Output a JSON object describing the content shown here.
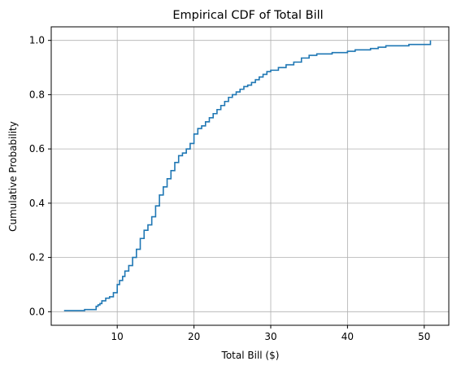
{
  "chart_data": {
    "type": "line",
    "step": true,
    "title": "Empirical CDF of Total Bill",
    "xlabel": "Total Bill ($)",
    "ylabel": "Cumulative Probability",
    "xlim": [
      1.4,
      53.2
    ],
    "ylim": [
      -0.05,
      1.05
    ],
    "xticks": [
      10,
      20,
      30,
      40,
      50
    ],
    "xtick_labels": [
      "10",
      "20",
      "30",
      "40",
      "50"
    ],
    "yticks": [
      0.0,
      0.2,
      0.4,
      0.6,
      0.8,
      1.0
    ],
    "ytick_labels": [
      "0.0",
      "0.2",
      "0.4",
      "0.6",
      "0.8",
      "1.0"
    ],
    "grid": true,
    "line_color": "#1f77b4",
    "series": [
      {
        "x": [
          3.07,
          5.75,
          7.25,
          7.5,
          7.75,
          8.0,
          8.5,
          9.0,
          9.5,
          10.0,
          10.3,
          10.7,
          11.0,
          11.5,
          12.0,
          12.5,
          13.0,
          13.5,
          14.0,
          14.5,
          15.0,
          15.5,
          16.0,
          16.5,
          17.0,
          17.5,
          18.0,
          18.5,
          19.0,
          19.5,
          20.0,
          20.5,
          21.0,
          21.5,
          22.0,
          22.5,
          23.0,
          23.5,
          24.0,
          24.5,
          25.0,
          25.5,
          26.0,
          26.5,
          27.0,
          27.5,
          28.0,
          28.5,
          29.0,
          29.5,
          30.0,
          31.0,
          32.0,
          33.0,
          34.0,
          35.0,
          36.0,
          38.0,
          40.0,
          41.0,
          43.0,
          44.0,
          45.0,
          48.0,
          50.81
        ],
        "y": [
          0.004,
          0.008,
          0.02,
          0.025,
          0.03,
          0.04,
          0.05,
          0.055,
          0.07,
          0.1,
          0.115,
          0.13,
          0.15,
          0.17,
          0.2,
          0.23,
          0.27,
          0.3,
          0.32,
          0.35,
          0.39,
          0.43,
          0.46,
          0.49,
          0.52,
          0.55,
          0.575,
          0.585,
          0.6,
          0.62,
          0.655,
          0.675,
          0.685,
          0.7,
          0.715,
          0.73,
          0.745,
          0.76,
          0.775,
          0.79,
          0.8,
          0.81,
          0.82,
          0.83,
          0.835,
          0.845,
          0.855,
          0.865,
          0.875,
          0.885,
          0.89,
          0.9,
          0.91,
          0.92,
          0.935,
          0.945,
          0.95,
          0.955,
          0.96,
          0.965,
          0.97,
          0.975,
          0.98,
          0.985,
          1.0
        ]
      }
    ]
  }
}
